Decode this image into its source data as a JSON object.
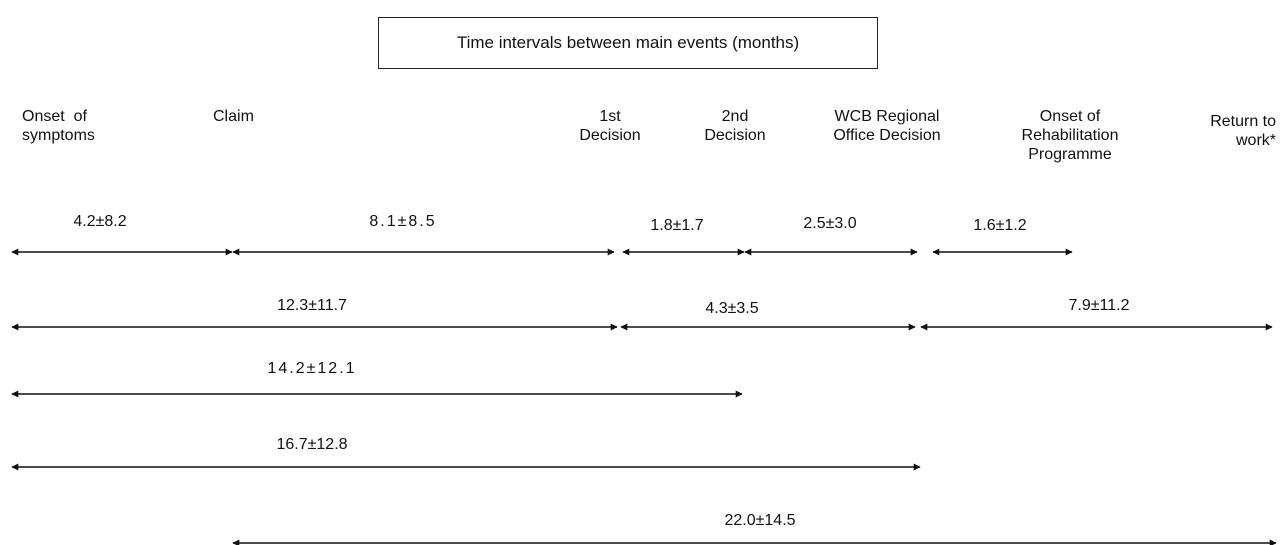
{
  "title": "Time intervals between main events (months)",
  "events": [
    {
      "id": "onset",
      "lines": [
        "Onset  of",
        "symptoms"
      ]
    },
    {
      "id": "claim",
      "lines": [
        "Claim"
      ]
    },
    {
      "id": "first-decision",
      "lines": [
        "1st",
        "Decision"
      ]
    },
    {
      "id": "second-decision",
      "lines": [
        "2nd",
        "Decision"
      ]
    },
    {
      "id": "wcb-decision",
      "lines": [
        "WCB Regional",
        "Office Decision"
      ]
    },
    {
      "id": "rehab-onset",
      "lines": [
        "Onset of",
        "Rehabilitation",
        "Programme"
      ]
    },
    {
      "id": "return-to-work",
      "lines": [
        "Return to",
        "work*"
      ]
    }
  ],
  "intervals": [
    {
      "from": "onset",
      "to": "claim",
      "label": "4.2±8.2"
    },
    {
      "from": "claim",
      "to": "first-decision",
      "label": "8.1±8.5"
    },
    {
      "from": "first-decision",
      "to": "second-decision",
      "label": "1.8±1.7"
    },
    {
      "from": "second-decision",
      "to": "wcb-decision",
      "label": "2.5±3.0"
    },
    {
      "from": "wcb-decision",
      "to": "rehab-onset",
      "label": "1.6±1.2"
    },
    {
      "from": "onset",
      "to": "first-decision",
      "label": "12.3±11.7"
    },
    {
      "from": "first-decision",
      "to": "wcb-decision",
      "label": "4.3±3.5"
    },
    {
      "from": "wcb-decision",
      "to": "return-to-work",
      "label": "7.9±11.2"
    },
    {
      "from": "onset",
      "to": "second-decision",
      "label": "14.2±12.1"
    },
    {
      "from": "onset",
      "to": "wcb-decision",
      "label": "16.7±12.8"
    },
    {
      "from": "claim",
      "to": "return-to-work",
      "label": "22.0±14.5"
    }
  ]
}
